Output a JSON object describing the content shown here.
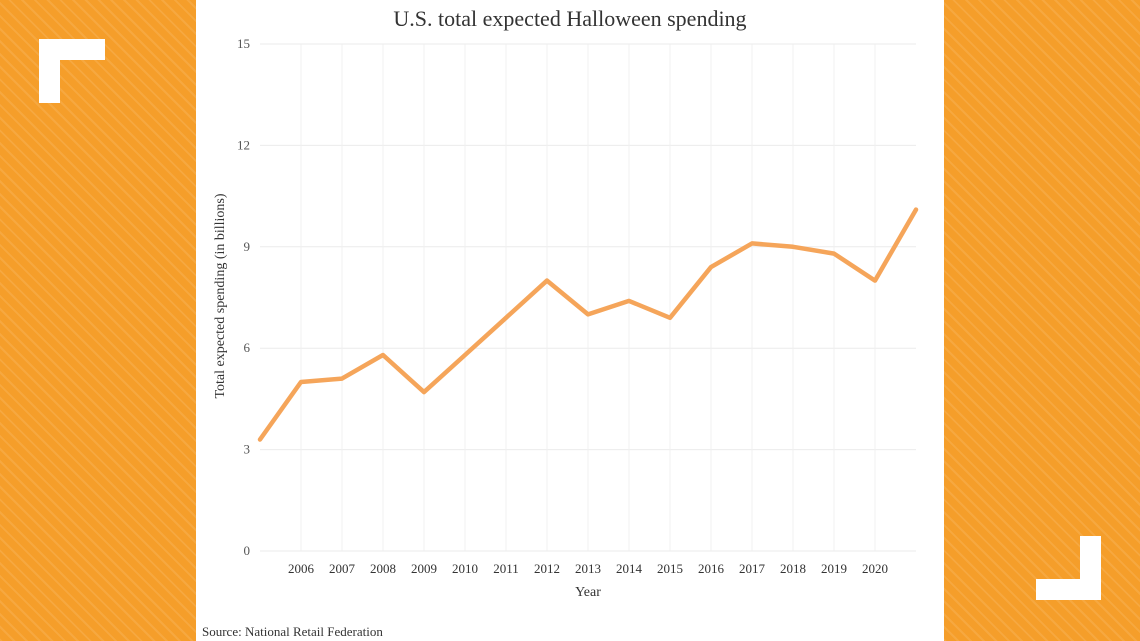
{
  "page": {
    "source": "Source: National Retail Federation"
  },
  "colors": {
    "background_orange": "#f59e2a",
    "line": "#f5a55a",
    "bracket": "#ffffff"
  },
  "chart_data": {
    "type": "line",
    "title": "U.S. total expected Halloween spending",
    "xlabel": "Year",
    "ylabel": "Total expected spending (in billions)",
    "ylim": [
      0,
      15
    ],
    "xlim": [
      2005,
      2021
    ],
    "yticks": [
      0,
      3,
      6,
      9,
      12,
      15
    ],
    "xticks": [
      2006,
      2007,
      2008,
      2009,
      2010,
      2011,
      2012,
      2013,
      2014,
      2015,
      2016,
      2017,
      2018,
      2019,
      2020
    ],
    "grid": true,
    "series": [
      {
        "x": [
          2005,
          2006,
          2007,
          2008,
          2009,
          2010,
          2011,
          2012,
          2013,
          2014,
          2015,
          2016,
          2017,
          2018,
          2019,
          2020,
          2021
        ],
        "values": [
          3.3,
          5.0,
          5.1,
          5.8,
          4.7,
          5.8,
          6.9,
          8.0,
          7.0,
          7.4,
          6.9,
          8.4,
          9.1,
          9.0,
          8.8,
          8.0,
          10.1
        ]
      }
    ]
  }
}
